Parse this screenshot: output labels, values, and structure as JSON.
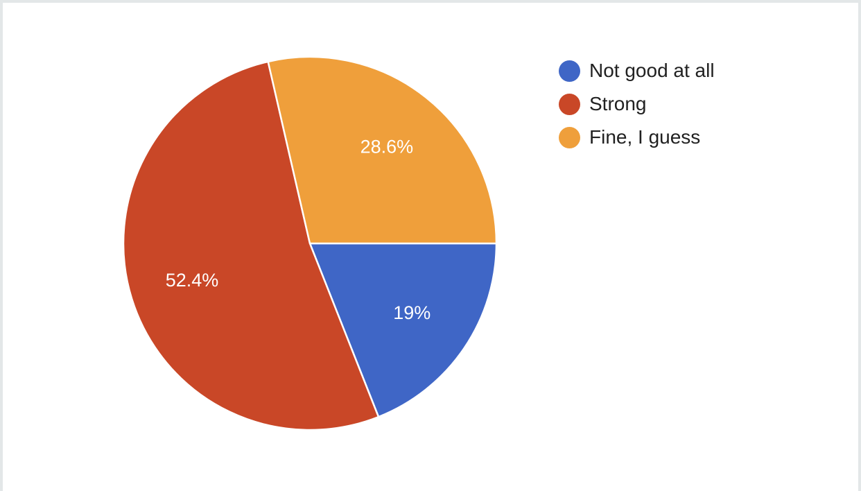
{
  "chart_data": {
    "type": "pie",
    "slices": [
      {
        "label": "Not good at all",
        "value": 19,
        "display": "19%",
        "color": "#3f66c6"
      },
      {
        "label": "Strong",
        "value": 52.4,
        "display": "52.4%",
        "color": "#c94727"
      },
      {
        "label": "Fine, I guess",
        "value": 28.6,
        "display": "28.6%",
        "color": "#ef9f3b"
      }
    ],
    "start_angle_deg": 90,
    "direction": "clockwise",
    "legend_position": "right",
    "title": ""
  }
}
